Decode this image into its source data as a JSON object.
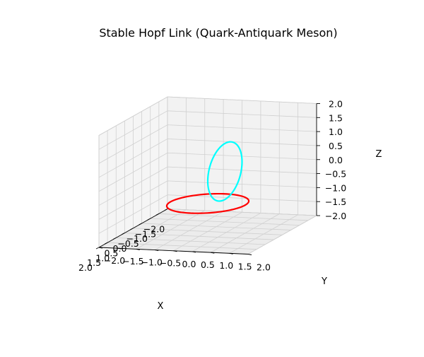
{
  "chart_data": {
    "type": "line3d",
    "title": "Stable Hopf Link (Quark-Antiquark Meson)",
    "xlabel": "X",
    "ylabel": "Y",
    "zlabel": "Z",
    "xlim": [
      -2.0,
      2.0
    ],
    "ylim": [
      -2.0,
      2.0
    ],
    "zlim": [
      -2.0,
      2.0
    ],
    "xticks": [
      "−2.0",
      "−1.5",
      "−1.0",
      "−0.5",
      "0.0",
      "0.5",
      "1.0",
      "1.5",
      "2.0"
    ],
    "yticks": [
      "−2.0",
      "−1.5",
      "−1.0",
      "−0.5",
      "0.0",
      "0.5",
      "1.0",
      "1.5",
      "2.0"
    ],
    "zticks": [
      "−2.0",
      "−1.5",
      "−1.0",
      "−0.5",
      "0.0",
      "0.5",
      "1.0",
      "1.5",
      "2.0"
    ],
    "grid": true,
    "series": [
      {
        "color": "#ff0000",
        "shape": "circle",
        "plane": "xy",
        "center": [
          0,
          0,
          -1
        ],
        "radius": 1
      },
      {
        "color": "#00ffff",
        "shape": "circle",
        "plane": "xz",
        "center": [
          -1,
          0,
          -0.2
        ],
        "radius": 1
      }
    ]
  }
}
